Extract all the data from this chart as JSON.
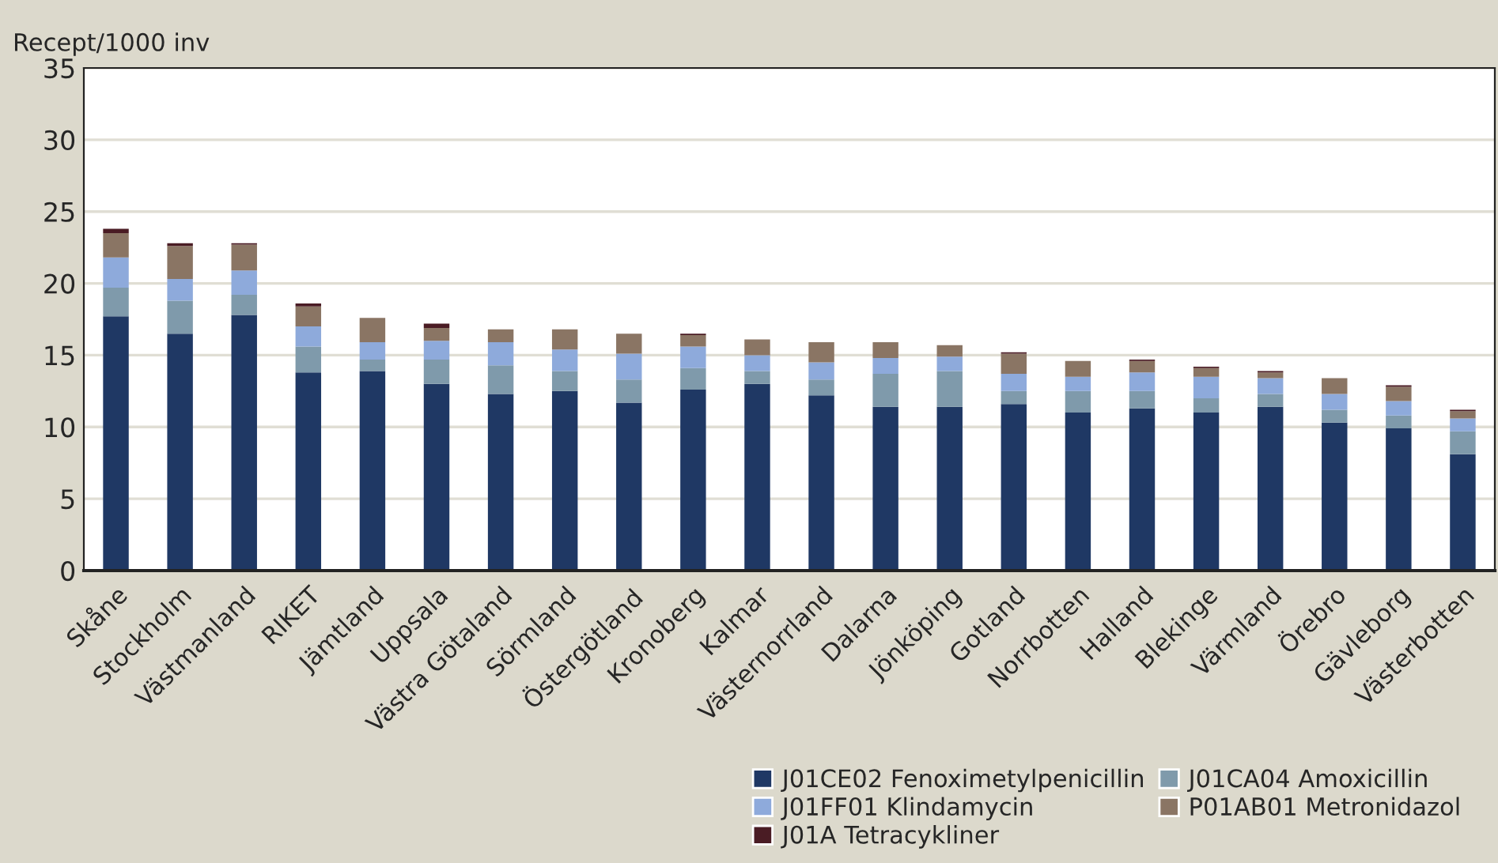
{
  "chart_data": {
    "type": "bar",
    "stacked": true,
    "ylabel": "Recept/1000 inv",
    "categories": [
      "Skåne",
      "Stockholm",
      "Västmanland",
      "RIKET",
      "Jämtland",
      "Uppsala",
      "Västra Götaland",
      "Sörmland",
      "Östergötland",
      "Kronoberg",
      "Kalmar",
      "Västernorrland",
      "Dalarna",
      "Jönköping",
      "Gotland",
      "Norrbotten",
      "Halland",
      "Blekinge",
      "Värmland",
      "Örebro",
      "Gävleborg",
      "Västerbotten"
    ],
    "series": [
      {
        "name": "J01CE02 Fenoximetylpenicillin",
        "color": "#1f3864",
        "values": [
          17.7,
          16.5,
          17.8,
          13.8,
          13.9,
          13.0,
          12.3,
          12.5,
          11.7,
          12.6,
          13.0,
          12.2,
          11.4,
          11.4,
          11.6,
          11.0,
          11.3,
          11.0,
          11.4,
          10.3,
          9.9,
          8.1
        ]
      },
      {
        "name": "J01CA04 Amoxicillin",
        "color": "#7f9aab",
        "values": [
          2.0,
          2.3,
          1.4,
          1.8,
          0.8,
          1.7,
          2.0,
          1.4,
          1.6,
          1.5,
          0.9,
          1.1,
          2.3,
          2.5,
          0.9,
          1.5,
          1.2,
          1.0,
          0.9,
          0.9,
          0.9,
          1.6
        ]
      },
      {
        "name": "J01FF01 Klindamycin",
        "color": "#8eaadb",
        "values": [
          2.1,
          1.5,
          1.7,
          1.4,
          1.2,
          1.3,
          1.6,
          1.5,
          1.8,
          1.5,
          1.1,
          1.2,
          1.1,
          1.0,
          1.2,
          1.0,
          1.3,
          1.5,
          1.1,
          1.1,
          1.0,
          0.9
        ]
      },
      {
        "name": "P01AB01 Metronidazol",
        "color": "#8a7564",
        "values": [
          1.7,
          2.3,
          1.8,
          1.4,
          1.7,
          0.9,
          0.9,
          1.4,
          1.4,
          0.8,
          1.1,
          1.4,
          1.1,
          0.8,
          1.4,
          1.1,
          0.8,
          0.6,
          0.4,
          1.1,
          1.0,
          0.5
        ]
      },
      {
        "name": "J01A Tetracykliner",
        "color": "#4a1c24",
        "values": [
          0.3,
          0.2,
          0.1,
          0.2,
          0,
          0.3,
          0,
          0,
          0,
          0.1,
          0,
          0,
          0,
          0,
          0.1,
          0,
          0.1,
          0.1,
          0.1,
          0,
          0.1,
          0.1
        ]
      }
    ],
    "ylim": [
      0,
      35
    ],
    "yticks": [
      0,
      5,
      10,
      15,
      20,
      25,
      30,
      35
    ],
    "grid": "y",
    "legend": "bottom right"
  }
}
